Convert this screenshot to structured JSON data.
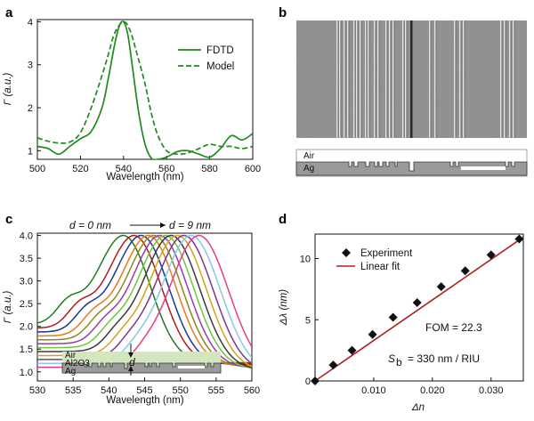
{
  "panels": {
    "a": "a",
    "b": "b",
    "c": "c",
    "d": "d"
  },
  "chart_data": [
    {
      "panel": "a",
      "type": "line",
      "xlabel": "Wavelength (nm)",
      "ylabel": "Γ (a.u.)",
      "xlim": [
        500,
        600
      ],
      "ylim": [
        0.8,
        4.05
      ],
      "xticks": [
        "500",
        "520",
        "540",
        "560",
        "580",
        "600"
      ],
      "yticks": [
        "1",
        "2",
        "3",
        "4"
      ],
      "legend_position": "top-right",
      "color": "#1f8a1f",
      "series": [
        {
          "name": "FDTD",
          "style": "solid",
          "x": [
            500,
            505,
            510,
            515,
            520,
            525,
            530,
            533,
            536,
            538,
            540,
            542,
            544,
            547,
            550,
            553,
            556,
            560,
            565,
            570,
            575,
            580,
            585,
            590,
            595,
            600
          ],
          "y": [
            1.1,
            1.05,
            0.92,
            1.1,
            1.28,
            1.45,
            2.0,
            2.7,
            3.5,
            3.9,
            4.0,
            3.7,
            3.0,
            1.9,
            1.15,
            0.82,
            0.8,
            0.85,
            0.98,
            1.0,
            0.92,
            0.85,
            1.05,
            1.35,
            1.25,
            1.4
          ]
        },
        {
          "name": "Model",
          "style": "dashed",
          "x": [
            500,
            505,
            510,
            515,
            520,
            525,
            530,
            533,
            536,
            540,
            543,
            546,
            550,
            553,
            556,
            560,
            565,
            570,
            575,
            580,
            585,
            590,
            595,
            600
          ],
          "y": [
            1.3,
            1.22,
            1.18,
            1.2,
            1.42,
            2.0,
            2.75,
            3.25,
            3.75,
            4.0,
            3.8,
            3.3,
            2.55,
            1.85,
            1.35,
            1.0,
            0.92,
            0.95,
            1.05,
            1.15,
            1.1,
            1.1,
            1.05,
            1.1
          ]
        }
      ]
    },
    {
      "panel": "c",
      "type": "line",
      "xlabel": "Wavelength (nm)",
      "ylabel": "Γ (a.u.)",
      "xlim": [
        530,
        560
      ],
      "ylim": [
        0.8,
        4.05
      ],
      "xticks": [
        "530",
        "535",
        "540",
        "545",
        "550",
        "555",
        "560"
      ],
      "yticks": [
        "1.0",
        "1.5",
        "2.0",
        "2.5",
        "3.0",
        "3.5",
        "4.0"
      ],
      "annotation_start": "d = 0 nm",
      "annotation_end": "d = 9 nm",
      "peaks": [
        542.0,
        543.5,
        544.5,
        545.5,
        546.3,
        547.1,
        547.9,
        548.7,
        549.6,
        550.5,
        551.5,
        552.6
      ],
      "colors": [
        "#1f7a1f",
        "#b01c1c",
        "#1a3a8a",
        "#e8781a",
        "#8a8a1a",
        "#9a3ab0",
        "#6cc83a",
        "#3a3a3a",
        "#d8a01a",
        "#7a3a8a",
        "#88c8e8",
        "#e0408a"
      ]
    },
    {
      "panel": "d",
      "type": "scatter",
      "xlabel": "Δn",
      "ylabel": "Δλ (nm)",
      "xlim": [
        0,
        0.0355
      ],
      "ylim": [
        0,
        12
      ],
      "xticks": [
        "0.010",
        "0.020",
        "0.030"
      ],
      "yticks": [
        "0",
        "5",
        "10"
      ],
      "legend_position": "top-left",
      "series": [
        {
          "name": "Experiment",
          "marker": "diamond",
          "color": "#111111",
          "x": [
            0.0,
            0.0031,
            0.0063,
            0.0098,
            0.0133,
            0.0174,
            0.0215,
            0.0256,
            0.03,
            0.0348
          ],
          "y": [
            0.0,
            1.3,
            2.5,
            3.8,
            5.2,
            6.4,
            7.7,
            9.0,
            10.3,
            11.6
          ]
        },
        {
          "name": "Linear fit",
          "color": "#b02020",
          "x": [
            0.0,
            0.0355
          ],
          "y": [
            0.0,
            11.75
          ]
        }
      ],
      "annotations": [
        "FOM = 22.3",
        "S_b = 330 nm / RIU"
      ]
    }
  ],
  "schematic": {
    "b_labels": [
      "Air",
      "Ag"
    ],
    "c_labels": [
      "Air",
      "Al2O3",
      "Ag",
      "d"
    ]
  }
}
